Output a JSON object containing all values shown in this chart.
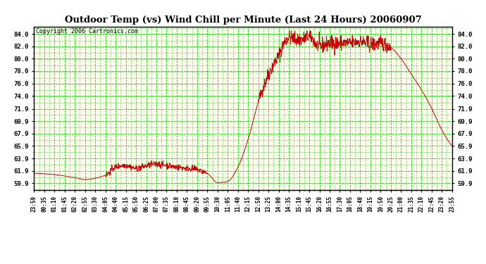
{
  "title": "Outdoor Temp (vs) Wind Chill per Minute (Last 24 Hours) 20060907",
  "copyright": "Copyright 2006 Cartronics.com",
  "bg_color": "#ffffff",
  "plot_bg_color": "#ffffee",
  "line_color": "#cc0000",
  "grid_major_color": "#00dd00",
  "grid_minor_color": "#00aa00",
  "yticks": [
    59.9,
    61.9,
    63.9,
    65.9,
    67.9,
    69.9,
    71.9,
    74.0,
    76.0,
    78.0,
    80.0,
    82.0,
    84.0
  ],
  "ymin": 58.8,
  "ymax": 85.2,
  "xtick_labels": [
    "23:59",
    "00:35",
    "01:10",
    "01:45",
    "02:20",
    "02:55",
    "03:30",
    "04:05",
    "04:40",
    "05:15",
    "05:50",
    "06:25",
    "07:00",
    "07:35",
    "08:10",
    "08:45",
    "09:20",
    "09:55",
    "10:30",
    "11:05",
    "11:40",
    "12:15",
    "12:50",
    "13:25",
    "14:00",
    "14:35",
    "15:10",
    "15:45",
    "16:20",
    "16:55",
    "17:30",
    "18:05",
    "18:40",
    "19:15",
    "19:50",
    "20:25",
    "21:00",
    "21:35",
    "22:10",
    "22:45",
    "23:20",
    "23:55"
  ]
}
